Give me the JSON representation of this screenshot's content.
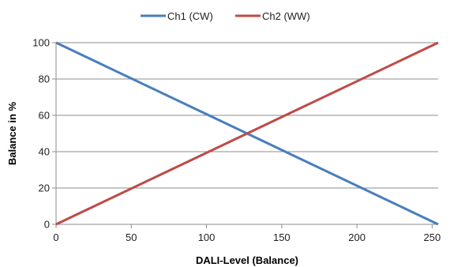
{
  "chart_data": {
    "type": "line",
    "xlabel": "DALI-Level (Balance)",
    "ylabel": "Balance in %",
    "xlim": [
      0,
      254
    ],
    "ylim": [
      0,
      100
    ],
    "xticks": [
      0,
      50,
      100,
      150,
      200,
      250
    ],
    "yticks": [
      0,
      20,
      40,
      60,
      80,
      100
    ],
    "grid": "horizontal",
    "legend_position": "top",
    "series": [
      {
        "name": "Ch1 (CW)",
        "color": "#4a7ebb",
        "x": [
          0,
          254
        ],
        "y": [
          100,
          0
        ]
      },
      {
        "name": "Ch2 (WW)",
        "color": "#be4b48",
        "x": [
          0,
          254
        ],
        "y": [
          0,
          100
        ]
      }
    ]
  }
}
